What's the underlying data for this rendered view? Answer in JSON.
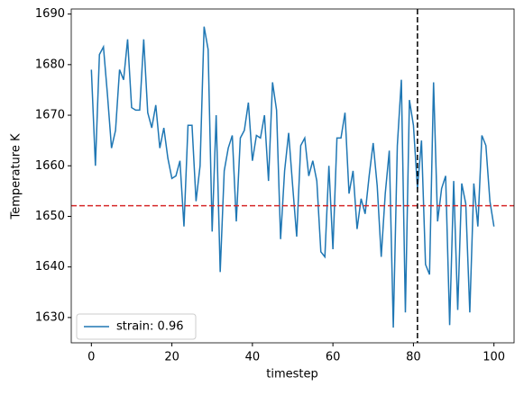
{
  "chart_data": {
    "type": "line",
    "x_label": "timestep",
    "y_label": "Temperature K",
    "x": [
      0,
      1,
      2,
      3,
      4,
      5,
      6,
      7,
      8,
      9,
      10,
      11,
      12,
      13,
      14,
      15,
      16,
      17,
      18,
      19,
      20,
      21,
      22,
      23,
      24,
      25,
      26,
      27,
      28,
      29,
      30,
      31,
      32,
      33,
      34,
      35,
      36,
      37,
      38,
      39,
      40,
      41,
      42,
      43,
      44,
      45,
      46,
      47,
      48,
      49,
      50,
      51,
      52,
      53,
      54,
      55,
      56,
      57,
      58,
      59,
      60,
      61,
      62,
      63,
      64,
      65,
      66,
      67,
      68,
      69,
      70,
      71,
      72,
      73,
      74,
      75,
      76,
      77,
      78,
      79,
      80,
      81,
      82,
      83,
      84,
      85,
      86,
      87,
      88,
      89,
      90,
      91,
      92,
      93,
      94,
      95,
      96,
      97,
      98,
      99,
      100
    ],
    "series": [
      {
        "name": "strain: 0.96",
        "color": "#1f77b4",
        "values": [
          1679,
          1660,
          1682,
          1683.5,
          1674,
          1663.5,
          1667,
          1679,
          1677,
          1685,
          1671.5,
          1671,
          1671,
          1685,
          1670.5,
          1667.5,
          1672,
          1663.5,
          1667.5,
          1661.5,
          1657.5,
          1658,
          1661,
          1648,
          1668,
          1668,
          1653,
          1660,
          1687.5,
          1683,
          1647,
          1670,
          1639,
          1659,
          1663.5,
          1666,
          1649,
          1665.5,
          1667,
          1672.5,
          1661,
          1666,
          1665.5,
          1670,
          1657,
          1676.5,
          1671,
          1645.5,
          1659,
          1666.5,
          1656,
          1646,
          1664,
          1665.5,
          1658,
          1661,
          1657,
          1643,
          1642,
          1660,
          1643.5,
          1665.5,
          1665.5,
          1670.5,
          1654.5,
          1659,
          1647.5,
          1653.5,
          1650.5,
          1658,
          1664.5,
          1656,
          1642,
          1654.5,
          1663,
          1628,
          1664,
          1677,
          1631,
          1673,
          1668,
          1655.5,
          1665,
          1640.5,
          1638.5,
          1676.5,
          1649,
          1655.5,
          1658,
          1628.5,
          1657,
          1631.5,
          1656.5,
          1652.5,
          1631,
          1656.5,
          1648,
          1666,
          1664,
          1653,
          1648
        ]
      }
    ],
    "reference_lines": [
      {
        "axis": "y",
        "value": 1652.1,
        "color": "#d62728"
      },
      {
        "axis": "x",
        "value": 81,
        "color": "#000000"
      }
    ],
    "xlim": [
      -5,
      105
    ],
    "ylim": [
      1625,
      1691
    ],
    "xticks": [
      0,
      20,
      40,
      60,
      80,
      100
    ],
    "yticks": [
      1630,
      1640,
      1650,
      1660,
      1670,
      1680,
      1690
    ],
    "legend": "lower left"
  }
}
